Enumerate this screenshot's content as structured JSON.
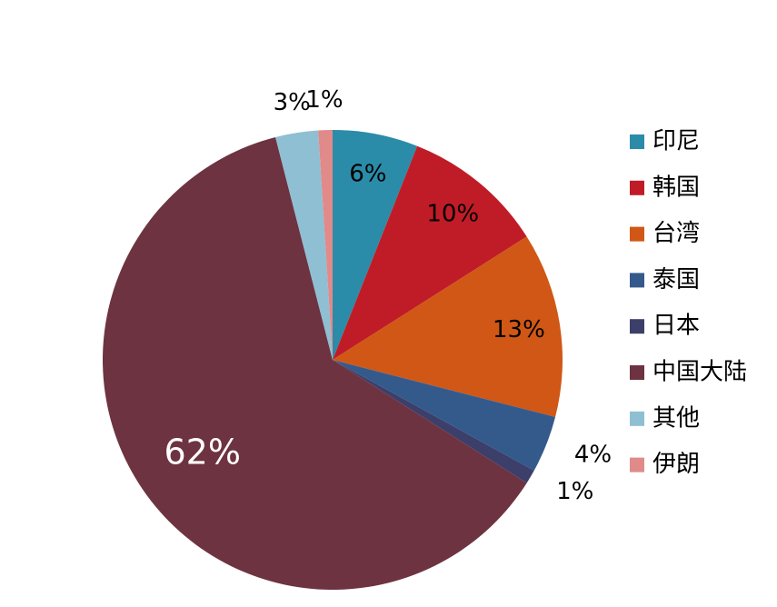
{
  "chart_data": {
    "type": "pie",
    "categories": [
      "印尼",
      "韩国",
      "台湾",
      "泰国",
      "日本",
      "中国大陆",
      "其他",
      "伊朗"
    ],
    "values": [
      6,
      10,
      13,
      4,
      1,
      62,
      3,
      1
    ],
    "value_labels": [
      "6%",
      "10%",
      "13%",
      "4%",
      "1%",
      "62%",
      "3%",
      "1%"
    ],
    "colors": [
      "#2a8ca8",
      "#c01c27",
      "#d05716",
      "#345a8c",
      "#3c3f6a",
      "#6e3340",
      "#8fbfd3",
      "#e08a8a"
    ],
    "legend": "right"
  }
}
